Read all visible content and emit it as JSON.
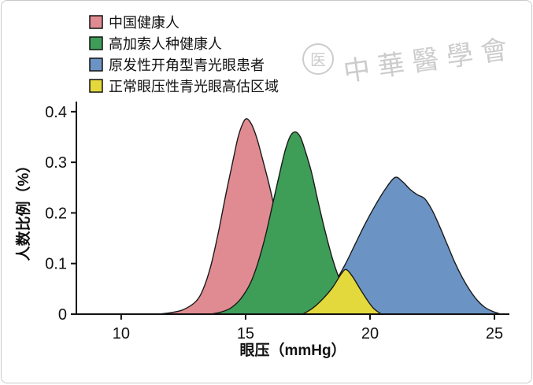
{
  "frame": {
    "bg": "#ffffff",
    "border_color": "#c9c9c9"
  },
  "watermark": {
    "text": "中華醫學會",
    "seal_char": "医",
    "color": "#9a9a9a"
  },
  "chart_data": {
    "type": "area",
    "title": "",
    "xlabel": "眼压（mmHg）",
    "ylabel": "人数比例（%）",
    "xlim": [
      8.2,
      25.6
    ],
    "ylim": [
      0,
      0.42
    ],
    "xticks": [
      10,
      15,
      20,
      25
    ],
    "ytick_values": [
      0,
      0.1,
      0.2,
      0.3,
      0.4
    ],
    "ytick_labels": [
      "0",
      "0.1",
      "0.2",
      "0.3",
      "0.4"
    ],
    "grid": false,
    "legend_position": "top-left",
    "axis_color": "#111111",
    "outline_color": "#1a1a1a",
    "draw_order": [
      0,
      2,
      1,
      3
    ],
    "series": [
      {
        "name": "中国健康人",
        "color": "#E08B92",
        "peak_x": 15.0,
        "peak_y": 0.386,
        "points": [
          [
            11.5,
            0
          ],
          [
            12,
            0.003
          ],
          [
            12.5,
            0.009
          ],
          [
            13,
            0.025
          ],
          [
            13.3,
            0.05
          ],
          [
            13.6,
            0.095
          ],
          [
            13.9,
            0.16
          ],
          [
            14.2,
            0.235
          ],
          [
            14.5,
            0.305
          ],
          [
            14.7,
            0.35
          ],
          [
            14.9,
            0.378
          ],
          [
            15.05,
            0.386
          ],
          [
            15.25,
            0.374
          ],
          [
            15.45,
            0.348
          ],
          [
            15.65,
            0.312
          ],
          [
            15.95,
            0.255
          ],
          [
            16.25,
            0.19
          ],
          [
            16.55,
            0.13
          ],
          [
            16.85,
            0.082
          ],
          [
            17.15,
            0.046
          ],
          [
            17.45,
            0.022
          ],
          [
            17.75,
            0.009
          ],
          [
            18.1,
            0.003
          ],
          [
            18.6,
            0
          ]
        ]
      },
      {
        "name": "高加索人种健康人",
        "color": "#3E9E58",
        "peak_x": 17.0,
        "peak_y": 0.36,
        "points": [
          [
            13.6,
            0
          ],
          [
            14,
            0.004
          ],
          [
            14.4,
            0.012
          ],
          [
            14.8,
            0.03
          ],
          [
            15.2,
            0.062
          ],
          [
            15.5,
            0.102
          ],
          [
            15.8,
            0.155
          ],
          [
            16.1,
            0.22
          ],
          [
            16.4,
            0.285
          ],
          [
            16.6,
            0.325
          ],
          [
            16.8,
            0.352
          ],
          [
            17,
            0.36
          ],
          [
            17.2,
            0.35
          ],
          [
            17.4,
            0.322
          ],
          [
            17.65,
            0.28
          ],
          [
            17.9,
            0.225
          ],
          [
            18.2,
            0.163
          ],
          [
            18.5,
            0.108
          ],
          [
            18.8,
            0.066
          ],
          [
            19.1,
            0.037
          ],
          [
            19.4,
            0.018
          ],
          [
            19.7,
            0.008
          ],
          [
            20,
            0.003
          ],
          [
            20.4,
            0
          ]
        ]
      },
      {
        "name": "原发性开角型青光眼患者",
        "color": "#6B93C4",
        "peak_x": 21.0,
        "peak_y": 0.27,
        "points": [
          [
            17,
            0
          ],
          [
            17.4,
            0.006
          ],
          [
            17.8,
            0.018
          ],
          [
            18.2,
            0.038
          ],
          [
            18.6,
            0.064
          ],
          [
            19,
            0.098
          ],
          [
            19.4,
            0.138
          ],
          [
            19.8,
            0.178
          ],
          [
            20.2,
            0.214
          ],
          [
            20.6,
            0.246
          ],
          [
            21,
            0.27
          ],
          [
            21.3,
            0.262
          ],
          [
            21.6,
            0.247
          ],
          [
            21.9,
            0.236
          ],
          [
            22.2,
            0.228
          ],
          [
            22.5,
            0.205
          ],
          [
            22.8,
            0.173
          ],
          [
            23.1,
            0.138
          ],
          [
            23.4,
            0.103
          ],
          [
            23.7,
            0.073
          ],
          [
            24,
            0.048
          ],
          [
            24.3,
            0.028
          ],
          [
            24.6,
            0.014
          ],
          [
            24.9,
            0.006
          ],
          [
            25.25,
            0
          ]
        ]
      },
      {
        "name": "正常眼压性青光眼高估区域",
        "color": "#E3D93C",
        "peak_x": 19.0,
        "peak_y": 0.088,
        "points": [
          [
            17.3,
            0
          ],
          [
            17.7,
            0.012
          ],
          [
            18.1,
            0.03
          ],
          [
            18.5,
            0.053
          ],
          [
            18.85,
            0.08
          ],
          [
            19.05,
            0.088
          ],
          [
            19.3,
            0.074
          ],
          [
            19.6,
            0.05
          ],
          [
            19.9,
            0.027
          ],
          [
            20.15,
            0.011
          ],
          [
            20.45,
            0
          ]
        ]
      }
    ]
  }
}
